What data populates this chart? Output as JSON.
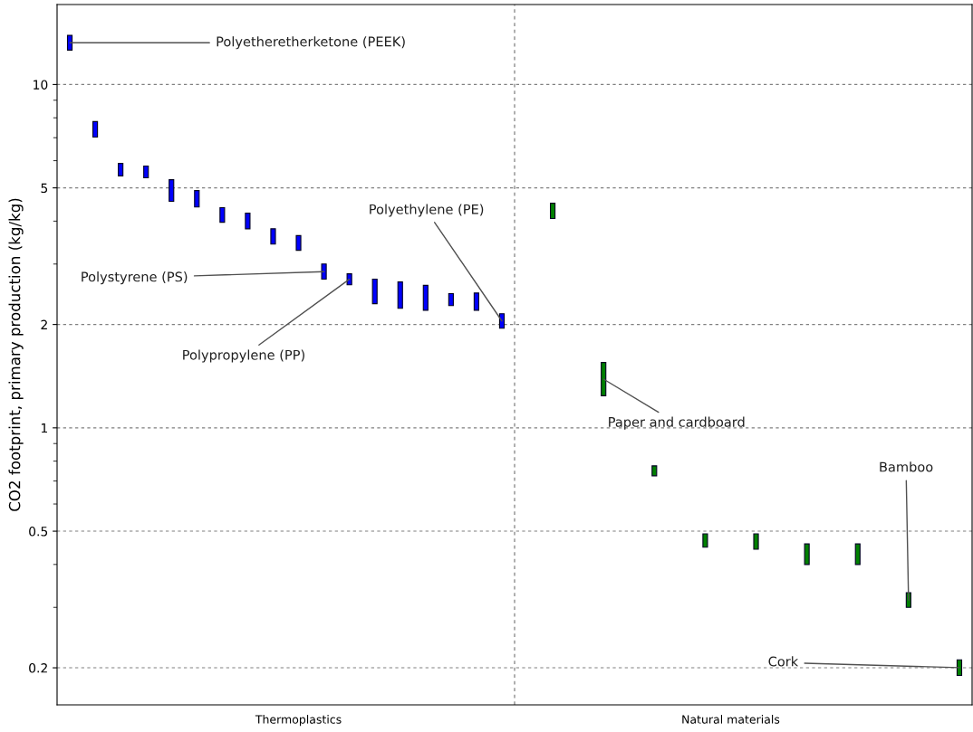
{
  "chart_data": {
    "type": "bar",
    "ylabel": "CO2 footprint, primary production (kg/kg)",
    "categories": [
      null,
      null,
      null,
      null,
      null,
      null,
      null,
      null,
      null,
      "Thermoplastics",
      null,
      null,
      null,
      null,
      null,
      null,
      null,
      null,
      null,
      null,
      null,
      null,
      null,
      null,
      null,
      null,
      "Natural materials",
      null,
      null,
      null,
      null,
      null,
      null,
      null,
      null,
      null
    ],
    "series": [
      {
        "color": "#0000ff",
        "base": [
          12.6,
          7.03,
          5.42,
          5.35,
          4.57,
          4.4,
          3.97,
          3.8,
          3.43,
          3.29,
          2.71,
          2.61,
          2.3,
          2.23,
          2.2,
          2.27,
          2.2,
          1.95,
          null,
          null,
          null,
          null,
          null,
          null,
          null,
          null,
          null,
          null,
          null,
          null,
          null,
          null,
          null,
          null,
          null,
          null
        ],
        "values": [
          1.3,
          0.77,
          0.47,
          0.44,
          0.71,
          0.51,
          0.41,
          0.42,
          0.37,
          0.34,
          0.29,
          0.2,
          0.41,
          0.43,
          0.4,
          0.19,
          0.27,
          0.2,
          null,
          null,
          null,
          null,
          null,
          null,
          null,
          null,
          null,
          null,
          null,
          null,
          null,
          null,
          null,
          null,
          null,
          null
        ],
        "value_labels": [
          "Polyetheretherketone (PEEK)",
          null,
          null,
          null,
          null,
          null,
          null,
          null,
          null,
          null,
          "Polystyrene (PS)",
          "Polypropylene (PP)",
          null,
          null,
          null,
          null,
          null,
          "Polyethylene (PE)",
          null,
          null,
          null,
          null,
          null,
          null,
          null,
          null,
          null,
          null,
          null,
          null,
          null,
          null,
          null,
          null,
          null,
          null
        ]
      },
      {
        "color": "#008000",
        "base": [
          null,
          null,
          null,
          null,
          null,
          null,
          null,
          null,
          null,
          null,
          null,
          null,
          null,
          null,
          null,
          null,
          null,
          null,
          null,
          4.07,
          null,
          1.24,
          null,
          0.725,
          null,
          0.449,
          null,
          0.443,
          null,
          0.4,
          null,
          0.4,
          null,
          0.3,
          null,
          0.19
        ],
        "values": [
          null,
          null,
          null,
          null,
          null,
          null,
          null,
          null,
          null,
          null,
          null,
          null,
          null,
          null,
          null,
          null,
          null,
          null,
          null,
          0.44,
          null,
          0.31,
          null,
          0.05,
          null,
          0.042,
          null,
          0.048,
          null,
          0.059,
          null,
          0.059,
          null,
          0.031,
          null,
          0.021
        ],
        "value_labels": [
          null,
          null,
          null,
          null,
          null,
          null,
          null,
          null,
          null,
          null,
          null,
          null,
          null,
          null,
          null,
          null,
          null,
          null,
          null,
          null,
          null,
          "Paper and cardboard",
          null,
          null,
          null,
          null,
          null,
          null,
          null,
          null,
          null,
          null,
          null,
          "Bamboo",
          null,
          "Cork"
        ]
      }
    ],
    "log": "y",
    "ylim": [
      0.156,
      17.1
    ],
    "yticks": [
      0.2,
      0.5,
      1,
      2,
      5,
      10
    ],
    "grid": "y"
  }
}
